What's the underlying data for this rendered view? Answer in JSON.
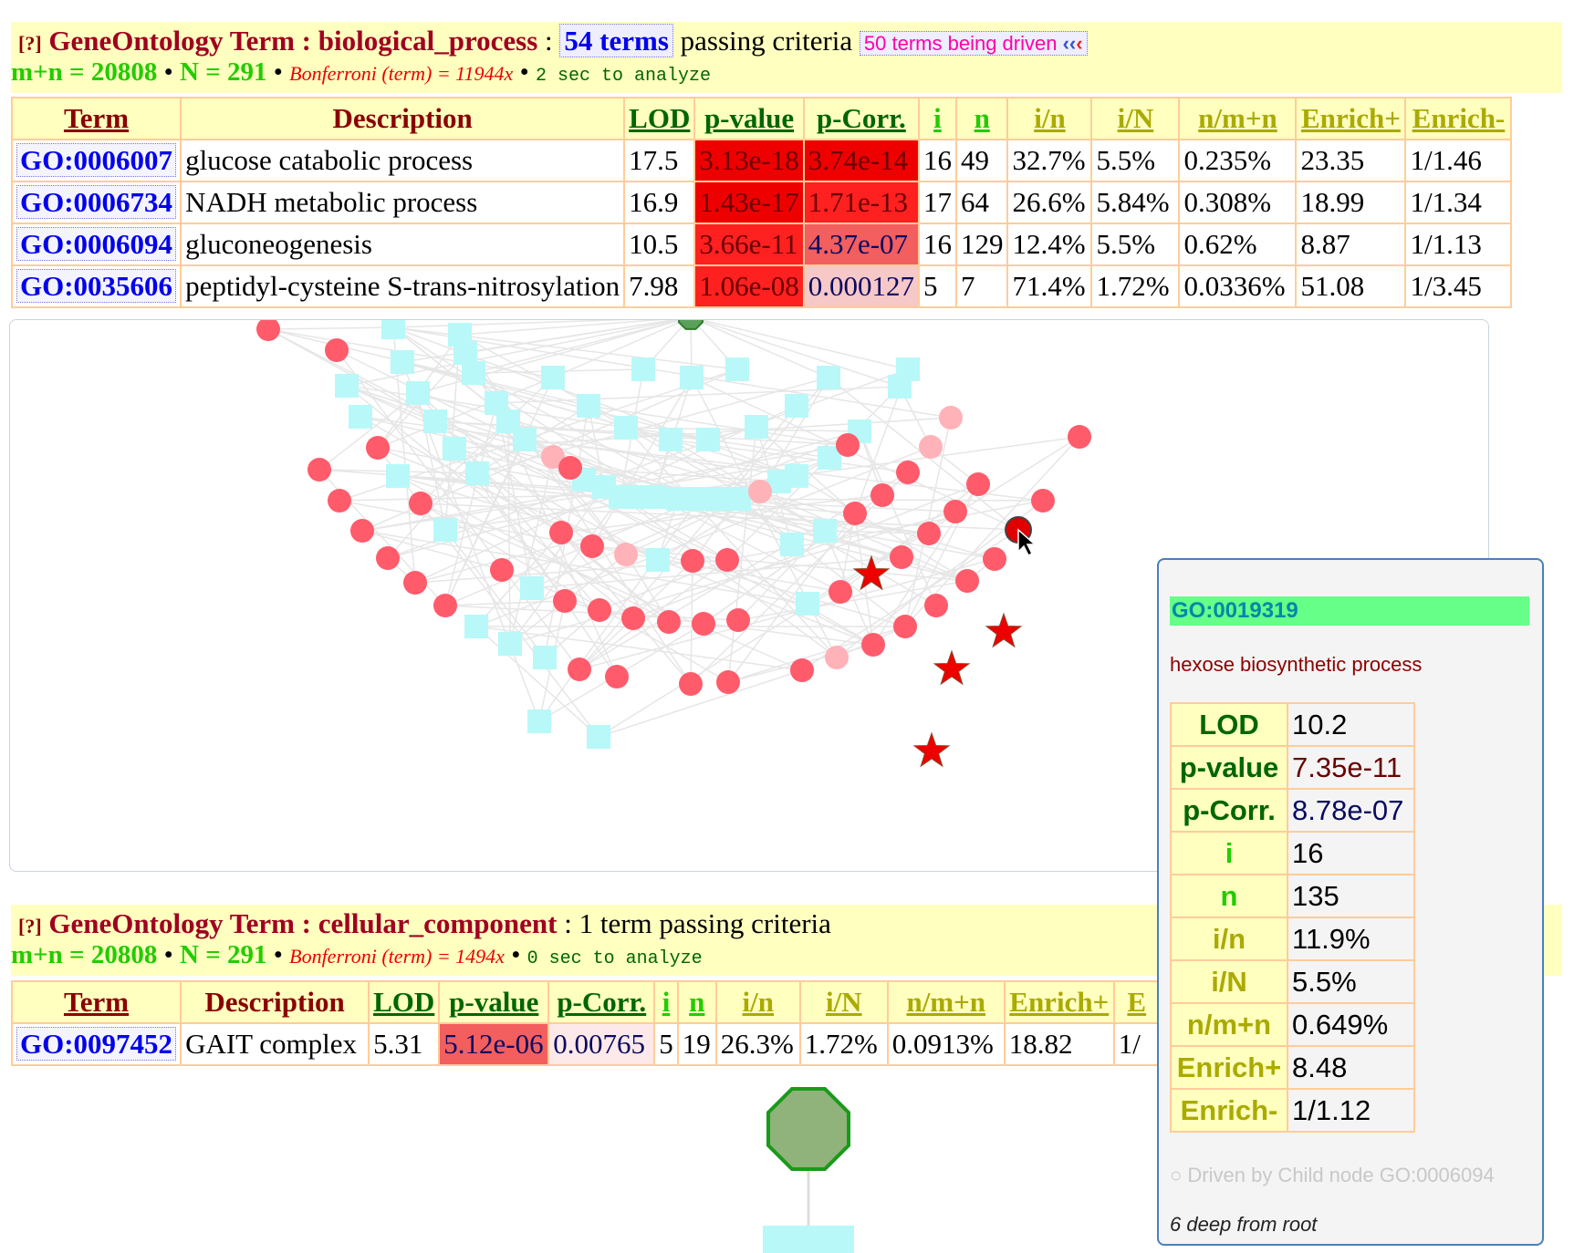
{
  "bp": {
    "help": "[?]",
    "title": "GeneOntology Term : biological_process",
    "colon": ":",
    "terms": "54 terms",
    "passing": "passing criteria",
    "driven": "50 terms being driven",
    "driven_icon": "double-chevron-left-icon",
    "mn": "m+n = 20808",
    "N": "N = 291",
    "bonf": "Bonferroni (term) = 11944x",
    "time": "2 sec to analyze",
    "headers": [
      "Term",
      "Description",
      "LOD",
      "p-value",
      "p-Corr.",
      "i",
      "n",
      "i/n",
      "i/N",
      "n/m+n",
      "Enrich+",
      "Enrich-"
    ],
    "rows": [
      {
        "term": "GO:0006007",
        "desc": "glucose catabolic process",
        "lod": "17.5",
        "pv": "3.13e-18",
        "pc": "3.74e-14",
        "i": "16",
        "n": "49",
        "in": "32.7%",
        "iN": "5.5%",
        "nmn": "0.235%",
        "ep": "23.35",
        "em": "1/1.46"
      },
      {
        "term": "GO:0006734",
        "desc": "NADH metabolic process",
        "lod": "16.9",
        "pv": "1.43e-17",
        "pc": "1.71e-13",
        "i": "17",
        "n": "64",
        "in": "26.6%",
        "iN": "5.84%",
        "nmn": "0.308%",
        "ep": "18.99",
        "em": "1/1.34"
      },
      {
        "term": "GO:0006094",
        "desc": "gluconeogenesis",
        "lod": "10.5",
        "pv": "3.66e-11",
        "pc": "4.37e-07",
        "i": "16",
        "n": "129",
        "in": "12.4%",
        "iN": "5.5%",
        "nmn": "0.62%",
        "ep": "8.87",
        "em": "1/1.13"
      },
      {
        "term": "GO:0035606",
        "desc": "peptidyl-cysteine S-trans-nitrosylation",
        "lod": "7.98",
        "pv": "1.06e-08",
        "pc": "0.000127",
        "i": "5",
        "n": "7",
        "in": "71.4%",
        "iN": "1.72%",
        "nmn": "0.0336%",
        "ep": "51.08",
        "em": "1/3.45"
      }
    ]
  },
  "cc": {
    "help": "[?]",
    "title": "GeneOntology Term : cellular_component",
    "passing": ": 1 term passing criteria",
    "mn": "m+n = 20808",
    "N": "N = 291",
    "bonf": "Bonferroni (term) = 1494x",
    "time": "0 sec to analyze",
    "headers": [
      "Term",
      "Description",
      "LOD",
      "p-value",
      "p-Corr.",
      "i",
      "n",
      "i/n",
      "i/N",
      "n/m+n",
      "Enrich+",
      "E"
    ],
    "rows": [
      {
        "term": "GO:0097452",
        "desc": "GAIT complex",
        "lod": "5.31",
        "pv": "5.12e-06",
        "pc": "0.00765",
        "i": "5",
        "n": "19",
        "in": "26.3%",
        "iN": "1.72%",
        "nmn": "0.0913%",
        "ep": "18.82",
        "em": "1/"
      }
    ]
  },
  "tooltip": {
    "go_id": "GO:0019319",
    "desc": "hexose biosynthetic process",
    "rows": [
      {
        "k": "LOD",
        "v": "10.2"
      },
      {
        "k": "p-value",
        "v": "7.35e-11"
      },
      {
        "k": "p-Corr.",
        "v": "8.78e-07"
      },
      {
        "k": "i",
        "v": "16"
      },
      {
        "k": "n",
        "v": "135"
      },
      {
        "k": "i/n",
        "v": "11.9%"
      },
      {
        "k": "i/N",
        "v": "5.5%"
      },
      {
        "k": "n/m+n",
        "v": "0.649%"
      },
      {
        "k": "Enrich+",
        "v": "8.48"
      },
      {
        "k": "Enrich-",
        "v": "1/1.12"
      }
    ],
    "driven": "○ Driven by Child node GO:0006094",
    "deep": "6 deep from root"
  },
  "colors": {
    "header_bg": "#ffffc0",
    "node_red": "#ff5b6b",
    "node_cyan": "#b8f8f8",
    "node_green": "#5aa05a",
    "star": "#ee0000",
    "tooltip_border": "#4a7fbf"
  }
}
